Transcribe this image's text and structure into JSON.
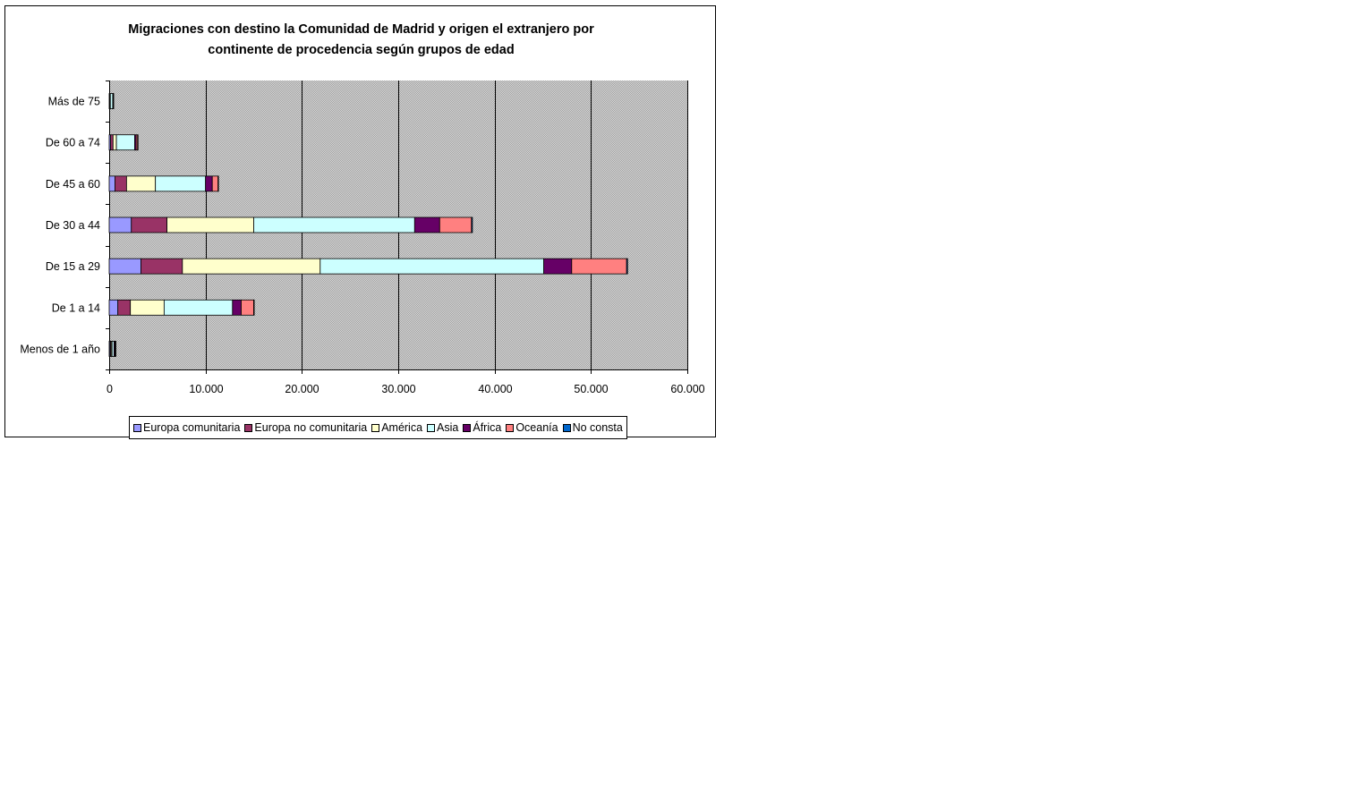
{
  "chart_data": {
    "type": "bar",
    "orientation": "horizontal",
    "stacked": true,
    "title": "Migraciones con destino la Comunidad de Madrid y origen el extranjero por continente de procedencia según grupos de edad",
    "title_lines": [
      "Migraciones con destino la Comunidad de Madrid y origen el extranjero por",
      "continente de procedencia según grupos de edad"
    ],
    "xlabel": "",
    "ylabel": "",
    "xlim": [
      0,
      60000
    ],
    "xticks": [
      0,
      10000,
      20000,
      30000,
      40000,
      50000,
      60000
    ],
    "xtick_labels": [
      "0",
      "10.000",
      "20.000",
      "30.000",
      "40.000",
      "50.000",
      "60.000"
    ],
    "categories": [
      "Menos de 1 año",
      "De 1 a 14",
      "De 15 a 29",
      "De 30 a 44",
      "De 45 a 60",
      "De 60 a 74",
      "Más de 75"
    ],
    "series": [
      {
        "name": "Europa comunitaria",
        "color": "#9999ff",
        "values": [
          100,
          900,
          3300,
          2300,
          600,
          150,
          40
        ]
      },
      {
        "name": "Europa no comunitaria",
        "color": "#993366",
        "values": [
          100,
          1300,
          4300,
          3700,
          1200,
          250,
          20
        ]
      },
      {
        "name": "América",
        "color": "#ffffcc",
        "values": [
          100,
          3500,
          14300,
          9000,
          3000,
          350,
          60
        ]
      },
      {
        "name": "Asia",
        "color": "#ccffff",
        "values": [
          200,
          7100,
          23200,
          16700,
          5200,
          1900,
          250
        ]
      },
      {
        "name": "África",
        "color": "#660066",
        "values": [
          100,
          900,
          2900,
          2600,
          700,
          150,
          30
        ]
      },
      {
        "name": "Oceanía",
        "color": "#ff8080",
        "values": [
          50,
          1300,
          5700,
          3300,
          600,
          150,
          20
        ]
      },
      {
        "name": "No consta",
        "color": "#0066cc",
        "values": [
          10,
          50,
          100,
          100,
          30,
          10,
          5
        ]
      }
    ],
    "grid": true,
    "legend": "bottom",
    "plot_background": "#c0c0c0"
  }
}
